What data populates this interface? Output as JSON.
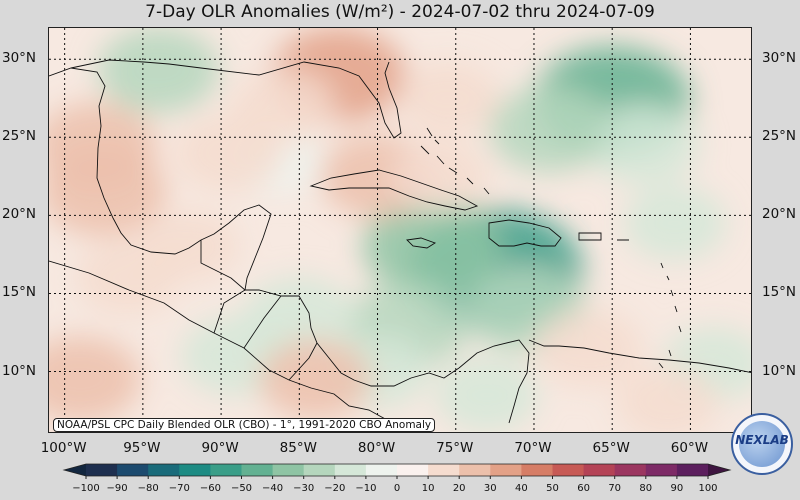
{
  "title": "7-Day OLR Anomalies (W/m²) - 2024-07-02 thru 2024-07-09",
  "source_note": "NOAA/PSL CPC Daily Blended OLR (CBO) - 1°, 1991-2020 CBO Anomaly",
  "logo_text": "NEXLAB",
  "lat_labels": [
    "30°N",
    "25°N",
    "20°N",
    "15°N",
    "10°N"
  ],
  "lon_labels": [
    "100°W",
    "95°W",
    "90°W",
    "85°W",
    "80°W",
    "75°W",
    "70°W",
    "65°W",
    "60°W"
  ],
  "colorbar_ticks": [
    "−100",
    "−90",
    "−80",
    "−70",
    "−60",
    "−50",
    "−40",
    "−30",
    "−20",
    "−10",
    "0",
    "10",
    "20",
    "30",
    "40",
    "50",
    "60",
    "70",
    "80",
    "90",
    "100"
  ],
  "colorbar_colors": [
    "#1e2f4f",
    "#1c4a6e",
    "#1a6b7a",
    "#1d8b83",
    "#3a9e88",
    "#63b192",
    "#8fc4a4",
    "#b5d6bd",
    "#d5e7d8",
    "#eef3ee",
    "#faf1ee",
    "#f5dccf",
    "#ecc0ab",
    "#e3a187",
    "#d67d66",
    "#c75a55",
    "#b44356",
    "#9b3660",
    "#7d2a66",
    "#5c1f5e"
  ],
  "map": {
    "lat_range": [
      6,
      32
    ],
    "lon_range": [
      -101,
      -56
    ],
    "anomaly_blobs": [
      {
        "lon": -72.5,
        "lat": 16.5,
        "value": -55
      },
      {
        "lon": -76.5,
        "lat": 18.0,
        "value": -35
      },
      {
        "lon": -70.5,
        "lat": 14.0,
        "value": -25
      },
      {
        "lon": -65.0,
        "lat": 27.3,
        "value": -45
      },
      {
        "lon": -63.0,
        "lat": 24.5,
        "value": -20
      },
      {
        "lon": -69.0,
        "lat": 25.5,
        "value": -25
      },
      {
        "lon": -94.0,
        "lat": 29.3,
        "value": -25
      },
      {
        "lon": -61.0,
        "lat": 19.5,
        "value": -15
      },
      {
        "lon": -78.0,
        "lat": 13.0,
        "value": -25
      },
      {
        "lon": -85.0,
        "lat": 13.5,
        "value": -20
      },
      {
        "lon": -89.0,
        "lat": 11.0,
        "value": -20
      },
      {
        "lon": -80.0,
        "lat": 10.0,
        "value": -15
      },
      {
        "lon": -73.0,
        "lat": 8.5,
        "value": -15
      },
      {
        "lon": -58.5,
        "lat": 10.5,
        "value": -15
      },
      {
        "lon": -86.5,
        "lat": 23.5,
        "value": -10
      },
      {
        "lon": -97.5,
        "lat": 21.5,
        "value": 28
      },
      {
        "lon": -98.0,
        "lat": 24.5,
        "value": 25
      },
      {
        "lon": -82.5,
        "lat": 29.0,
        "value": 32
      },
      {
        "lon": -80.0,
        "lat": 22.5,
        "value": 22
      },
      {
        "lon": -89.5,
        "lat": 24.0,
        "value": 18
      },
      {
        "lon": -99.0,
        "lat": 9.5,
        "value": 25
      },
      {
        "lon": -84.0,
        "lat": 9.5,
        "value": 20
      },
      {
        "lon": -66.5,
        "lat": 11.5,
        "value": 18
      },
      {
        "lon": -86.0,
        "lat": 27.0,
        "value": 15
      },
      {
        "lon": -75.5,
        "lat": 27.5,
        "value": 15
      },
      {
        "lon": -96.0,
        "lat": 16.0,
        "value": 15
      },
      {
        "lon": -61.5,
        "lat": 8.0,
        "value": 15
      },
      {
        "lon": -92.0,
        "lat": 18.0,
        "value": 12
      },
      {
        "lon": -76.0,
        "lat": 22.5,
        "value": 12
      }
    ]
  },
  "colors": {
    "background": "#d9d9d9",
    "coastline": "#111111",
    "gridline": "#111111"
  }
}
